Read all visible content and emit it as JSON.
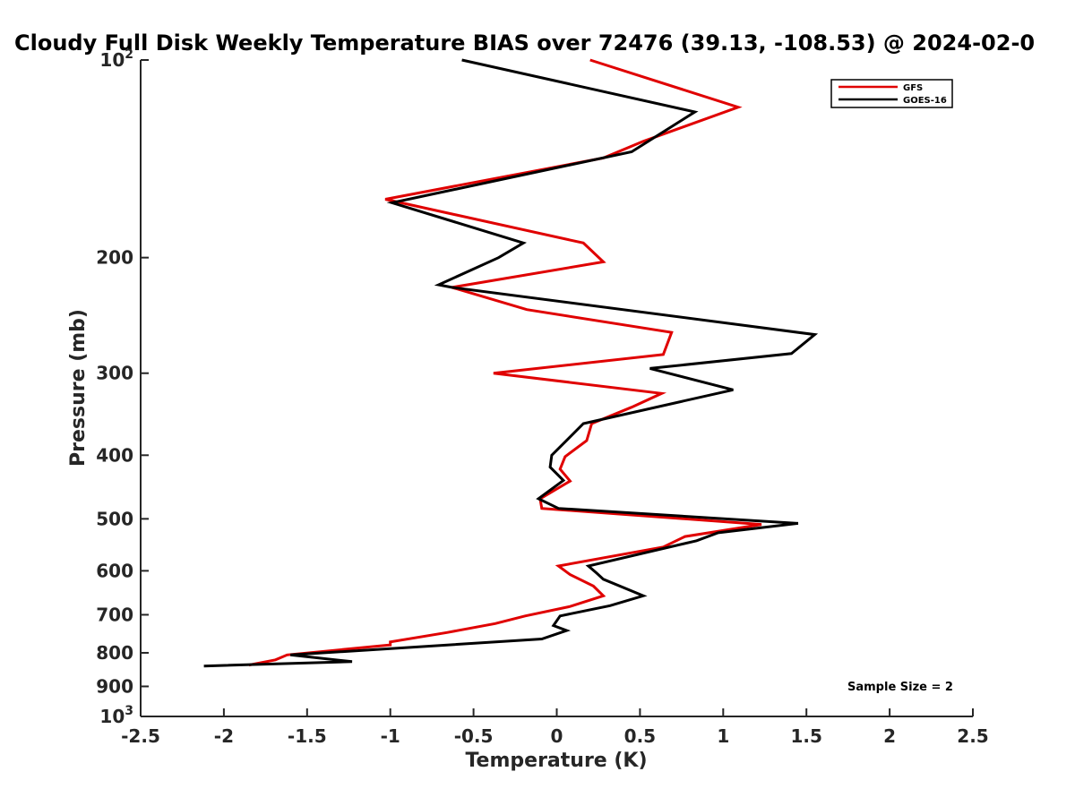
{
  "chart_data": {
    "type": "line",
    "title": "Cloudy Full Disk Weekly Temperature BIAS over 72476 (39.13, -108.53) @ 2024-02-0",
    "xlabel": "Temperature (K)",
    "ylabel": "Pressure (mb)",
    "xlim": [
      -2.5,
      2.5
    ],
    "ylim": [
      100,
      1000
    ],
    "y_scale": "log",
    "y_reversed": true,
    "x_ticks": [
      -2.5,
      -2,
      -1.5,
      -1,
      -0.5,
      0,
      0.5,
      1,
      1.5,
      2,
      2.5
    ],
    "x_tick_labels": [
      "-2.5",
      "-2",
      "-1.5",
      "-1",
      "-0.5",
      "0",
      "0.5",
      "1",
      "1.5",
      "2",
      "2.5"
    ],
    "y_ticks": [
      {
        "value": 100,
        "base": "10",
        "exp": "2"
      },
      {
        "value": 200,
        "label": "200"
      },
      {
        "value": 300,
        "label": "300"
      },
      {
        "value": 400,
        "label": "400"
      },
      {
        "value": 500,
        "label": "500"
      },
      {
        "value": 600,
        "label": "600"
      },
      {
        "value": 700,
        "label": "700"
      },
      {
        "value": 800,
        "label": "800"
      },
      {
        "value": 900,
        "label": "900"
      },
      {
        "value": 1000,
        "base": "10",
        "exp": "3"
      }
    ],
    "legend_position": "top-right",
    "grid": false,
    "annotation": "Sample Size = 2",
    "series": [
      {
        "name": "GFS",
        "color": "#e00000",
        "points": [
          [
            0.2,
            100
          ],
          [
            1.09,
            118
          ],
          [
            0.52,
            133
          ],
          [
            0.28,
            141
          ],
          [
            -1.03,
            163
          ],
          [
            0.16,
            190
          ],
          [
            0.28,
            203
          ],
          [
            -0.63,
            222
          ],
          [
            -0.18,
            240
          ],
          [
            0.69,
            260
          ],
          [
            0.64,
            281
          ],
          [
            -0.38,
            300
          ],
          [
            0.63,
            322
          ],
          [
            0.45,
            338
          ],
          [
            0.21,
            358
          ],
          [
            0.18,
            380
          ],
          [
            0.05,
            402
          ],
          [
            0.02,
            420
          ],
          [
            0.08,
            438
          ],
          [
            -0.1,
            466
          ],
          [
            -0.09,
            482
          ],
          [
            1.23,
            510
          ],
          [
            0.77,
            532
          ],
          [
            0.64,
            552
          ],
          [
            0.01,
            590
          ],
          [
            0.08,
            608
          ],
          [
            0.22,
            633
          ],
          [
            0.28,
            655
          ],
          [
            0.08,
            680
          ],
          [
            -0.19,
            703
          ],
          [
            -0.37,
            722
          ],
          [
            -0.66,
            745
          ],
          [
            -1.0,
            770
          ],
          [
            -1.0,
            778
          ],
          [
            -1.62,
            806
          ],
          [
            -1.69,
            820
          ],
          [
            -1.85,
            835
          ]
        ]
      },
      {
        "name": "GOES-16",
        "color": "#000000",
        "points": [
          [
            -0.57,
            100
          ],
          [
            0.83,
            120
          ],
          [
            0.45,
            138
          ],
          [
            -0.99,
            165
          ],
          [
            -0.2,
            190
          ],
          [
            -0.35,
            200
          ],
          [
            -0.71,
            220
          ],
          [
            -0.63,
            222
          ],
          [
            1.55,
            262
          ],
          [
            1.41,
            280
          ],
          [
            0.56,
            295
          ],
          [
            1.06,
            318
          ],
          [
            0.16,
            358
          ],
          [
            -0.03,
            400
          ],
          [
            -0.04,
            417
          ],
          [
            0.04,
            437
          ],
          [
            -0.11,
            466
          ],
          [
            0.01,
            482
          ],
          [
            1.45,
            508
          ],
          [
            0.97,
            525
          ],
          [
            0.84,
            540
          ],
          [
            0.19,
            590
          ],
          [
            0.24,
            605
          ],
          [
            0.28,
            618
          ],
          [
            0.52,
            655
          ],
          [
            0.32,
            678
          ],
          [
            0.02,
            703
          ],
          [
            -0.02,
            727
          ],
          [
            0.06,
            740
          ],
          [
            -0.09,
            762
          ],
          [
            -1.6,
            806
          ],
          [
            -1.23,
            825
          ],
          [
            -2.12,
            838
          ]
        ]
      }
    ]
  }
}
